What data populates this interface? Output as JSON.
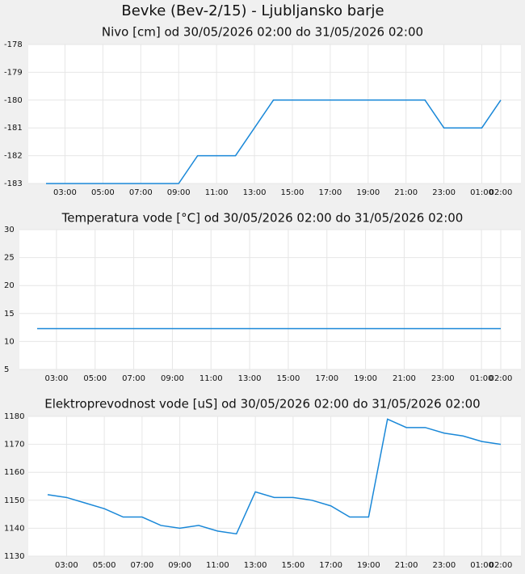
{
  "title": "Bevke (Bev-2/15) - Ljubljansko barje",
  "chart_data": [
    {
      "type": "line",
      "title": "Nivo [cm] od 30/05/2026 02:00 do 31/05/2026 02:00",
      "categories": [
        null,
        "03:00",
        null,
        "05:00",
        null,
        "07:00",
        null,
        "09:00",
        null,
        "11:00",
        null,
        "13:00",
        null,
        "15:00",
        null,
        "17:00",
        null,
        "19:00",
        null,
        "21:00",
        null,
        "23:00",
        null,
        "01:00",
        "02:00"
      ],
      "values": [
        -183,
        -183,
        -183,
        -183,
        -183,
        -183,
        -183,
        -183,
        -182,
        -182,
        -182,
        -181,
        -180,
        -180,
        -180,
        -180,
        -180,
        -180,
        -180,
        -180,
        -180,
        -181,
        -181,
        -181,
        -180
      ],
      "color": "#1a88d8",
      "ylim": [
        -183,
        -178
      ],
      "yticks": [
        -183,
        -182,
        -181,
        -180,
        -179,
        -178
      ],
      "grid": true
    },
    {
      "type": "line",
      "title": "Temperatura vode [°C] od 30/05/2026 02:00 do 31/05/2026 02:00",
      "categories": [
        null,
        "03:00",
        null,
        "05:00",
        null,
        "07:00",
        null,
        "09:00",
        null,
        "11:00",
        null,
        "13:00",
        null,
        "15:00",
        null,
        "17:00",
        null,
        "19:00",
        null,
        "21:00",
        null,
        "23:00",
        null,
        "01:00",
        "02:00"
      ],
      "values": [
        12.3,
        12.3,
        12.3,
        12.3,
        12.3,
        12.3,
        12.3,
        12.3,
        12.3,
        12.3,
        12.3,
        12.3,
        12.3,
        12.3,
        12.3,
        12.3,
        12.3,
        12.3,
        12.3,
        12.3,
        12.3,
        12.3,
        12.3,
        12.3,
        12.3
      ],
      "color": "#1a88d8",
      "ylim": [
        5,
        30
      ],
      "yticks": [
        5,
        10,
        15,
        20,
        25,
        30
      ],
      "grid": true
    },
    {
      "type": "line",
      "title": "Elektroprevodnost vode [uS] od 30/05/2026 02:00 do 31/05/2026 02:00",
      "categories": [
        null,
        "03:00",
        null,
        "05:00",
        null,
        "07:00",
        null,
        "09:00",
        null,
        "11:00",
        null,
        "13:00",
        null,
        "15:00",
        null,
        "17:00",
        null,
        "19:00",
        null,
        "21:00",
        null,
        "23:00",
        null,
        "01:00",
        "02:00"
      ],
      "values": [
        1152,
        1151,
        1149,
        1147,
        1144,
        1144,
        1141,
        1140,
        1141,
        1139,
        1138,
        1153,
        1151,
        1151,
        1150,
        1148,
        1144,
        1144,
        1179,
        1176,
        1176,
        1174,
        1173,
        1171,
        1170
      ],
      "color": "#1a88d8",
      "ylim": [
        1130,
        1180
      ],
      "yticks": [
        1130,
        1140,
        1150,
        1160,
        1170,
        1180
      ],
      "grid": true
    }
  ]
}
